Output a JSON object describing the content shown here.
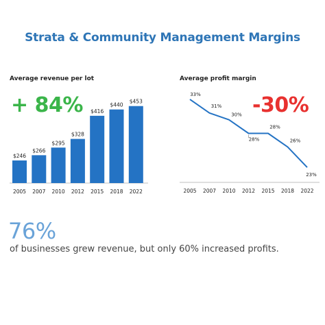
{
  "page": {
    "title": "Strata & Community Management Margins",
    "footer_stat": "76%",
    "footer_text": "of businesses grew revenue, but only 60% increased profits."
  },
  "colors": {
    "title": "#2e75b6",
    "bars": "#2473c4",
    "line": "#2473c4",
    "positive": "#3bb54a",
    "negative": "#e8312f",
    "footer_stat": "#6aa3d8"
  },
  "chart_data": [
    {
      "type": "bar",
      "title": "Average revenue per lot",
      "highlight": "+ 84%",
      "categories": [
        "2005",
        "2007",
        "2010",
        "2012",
        "2015",
        "2018",
        "2022"
      ],
      "values": [
        246,
        266,
        295,
        328,
        416,
        440,
        453
      ],
      "data_labels": [
        "$246",
        "$266",
        "$295",
        "$328",
        "$416",
        "$440",
        "$453"
      ],
      "ylim": [
        160,
        460
      ],
      "grid": false
    },
    {
      "type": "line",
      "title": "Average profit margin",
      "highlight": "-30%",
      "categories": [
        "2005",
        "2007",
        "2010",
        "2012",
        "2015",
        "2018",
        "2022"
      ],
      "values": [
        33,
        31,
        30,
        28,
        28,
        26,
        23
      ],
      "data_labels": [
        "33%",
        "31%",
        "30%",
        "28%",
        "28%",
        "26%",
        "23%"
      ],
      "ylim": [
        22,
        34
      ],
      "grid": false
    }
  ]
}
